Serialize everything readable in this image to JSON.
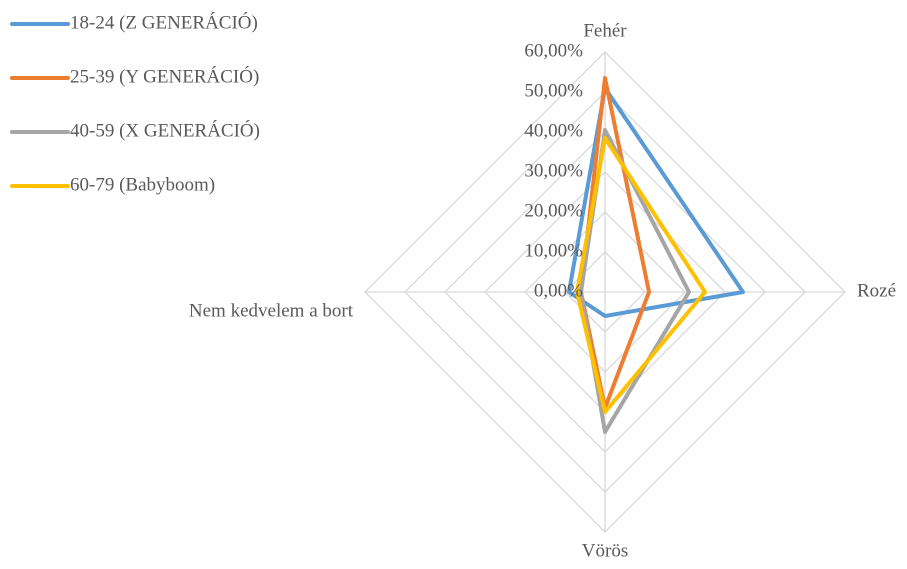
{
  "chart_data": {
    "type": "radar",
    "categories": [
      "Fehér",
      "Rozé",
      "Vörös",
      "Nem kedvelem a bort"
    ],
    "series": [
      {
        "name": "18-24 (Z GENERÁCIÓ)",
        "color": "#5b9bd5",
        "values": [
          51,
          34.5,
          6,
          9
        ]
      },
      {
        "name": "25-39 (Y GENERÁCIÓ)",
        "color": "#ed7d31",
        "values": [
          53.5,
          11,
          29,
          6
        ]
      },
      {
        "name": "40-59 (X GENERÁCIÓ)",
        "color": "#a5a5a5",
        "values": [
          40.5,
          21,
          35,
          6
        ]
      },
      {
        "name": "60-79 (Babyboom)",
        "color": "#ffc000",
        "values": [
          38.5,
          25,
          30,
          7
        ]
      }
    ],
    "rlim": [
      0,
      60
    ],
    "rticks": [
      {
        "value": 0,
        "label": "0,00%"
      },
      {
        "value": 10,
        "label": "10,00%"
      },
      {
        "value": 20,
        "label": "20,00%"
      },
      {
        "value": 30,
        "label": "30,00%"
      },
      {
        "value": 40,
        "label": "40,00%"
      },
      {
        "value": 50,
        "label": "50,00%"
      },
      {
        "value": 60,
        "label": "60,00%"
      }
    ],
    "grid": true,
    "legend": "top-left"
  }
}
